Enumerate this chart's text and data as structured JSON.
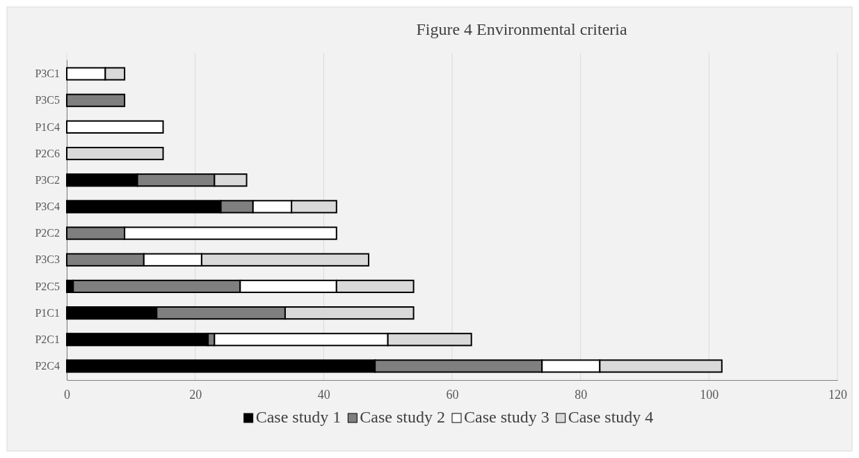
{
  "chart_data": {
    "type": "bar",
    "orientation": "horizontal",
    "stacked": true,
    "title": "Figure 4 Environmental criteria",
    "categories": [
      "P3C1",
      "P3C5",
      "P1C4",
      "P2C6",
      "P3C2",
      "P3C4",
      "P2C2",
      "P3C3",
      "P2C5",
      "P1C1",
      "P2C1",
      "P2C4"
    ],
    "series": [
      {
        "name": "Case study 1",
        "color": "#000000",
        "values": [
          0,
          0,
          0,
          0,
          11,
          24,
          0,
          0,
          1,
          14,
          22,
          48
        ]
      },
      {
        "name": "Case study 2",
        "color": "#7f7f7f",
        "values": [
          0,
          9,
          0,
          0,
          12,
          5,
          9,
          12,
          26,
          20,
          1,
          26
        ]
      },
      {
        "name": "Case study 3",
        "color": "#ffffff",
        "values": [
          6,
          0,
          15,
          0,
          0,
          6,
          33,
          9,
          15,
          0,
          27,
          9
        ]
      },
      {
        "name": "Case study 4",
        "color": "#d9d9d9",
        "values": [
          3,
          0,
          0,
          15,
          5,
          7,
          0,
          26,
          12,
          20,
          13,
          19
        ]
      }
    ],
    "xlim": [
      0,
      120
    ],
    "xticks": [
      0,
      20,
      40,
      60,
      80,
      100,
      120
    ],
    "grid": "x",
    "legend": "bottom"
  }
}
